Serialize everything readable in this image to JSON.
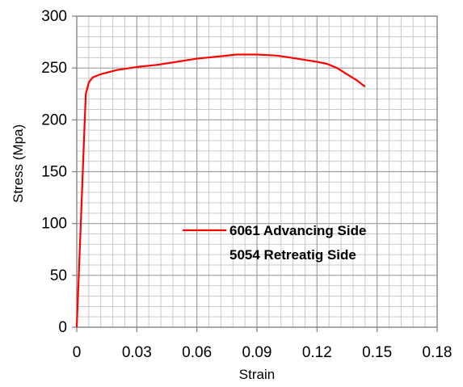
{
  "chart_data": {
    "type": "line",
    "xlabel": "Strain",
    "ylabel": "Stress (Mpa)",
    "xlim": [
      0,
      0.18
    ],
    "ylim": [
      0,
      300
    ],
    "x_ticks": [
      "0",
      "0.03",
      "0.06",
      "0.09",
      "0.12",
      "0.15",
      "0.18"
    ],
    "y_ticks": [
      "0",
      "50",
      "100",
      "150",
      "200",
      "250",
      "300"
    ],
    "x_tick_values": [
      0,
      0.03,
      0.06,
      0.09,
      0.12,
      0.15,
      0.18
    ],
    "y_tick_values": [
      0,
      50,
      100,
      150,
      200,
      250,
      300
    ],
    "grid": true,
    "legend_position": "center-right",
    "legend": [
      {
        "label": "6061 Advancing Side",
        "color": "#ff0000",
        "marker": "line"
      },
      {
        "label": "5054 Retreatig Side",
        "color": "",
        "marker": "none"
      }
    ],
    "series": [
      {
        "name": "6061 Advancing Side",
        "color": "#ff0000",
        "points": [
          [
            0.0,
            0
          ],
          [
            0.002,
            100
          ],
          [
            0.004,
            200
          ],
          [
            0.0045,
            225
          ],
          [
            0.006,
            236
          ],
          [
            0.008,
            241
          ],
          [
            0.012,
            244
          ],
          [
            0.02,
            248
          ],
          [
            0.03,
            251
          ],
          [
            0.04,
            253
          ],
          [
            0.05,
            256
          ],
          [
            0.06,
            259
          ],
          [
            0.07,
            261
          ],
          [
            0.08,
            263
          ],
          [
            0.09,
            263
          ],
          [
            0.1,
            262
          ],
          [
            0.11,
            259
          ],
          [
            0.12,
            256
          ],
          [
            0.125,
            254
          ],
          [
            0.13,
            250
          ],
          [
            0.135,
            244
          ],
          [
            0.14,
            238
          ],
          [
            0.144,
            232
          ]
        ]
      }
    ]
  }
}
